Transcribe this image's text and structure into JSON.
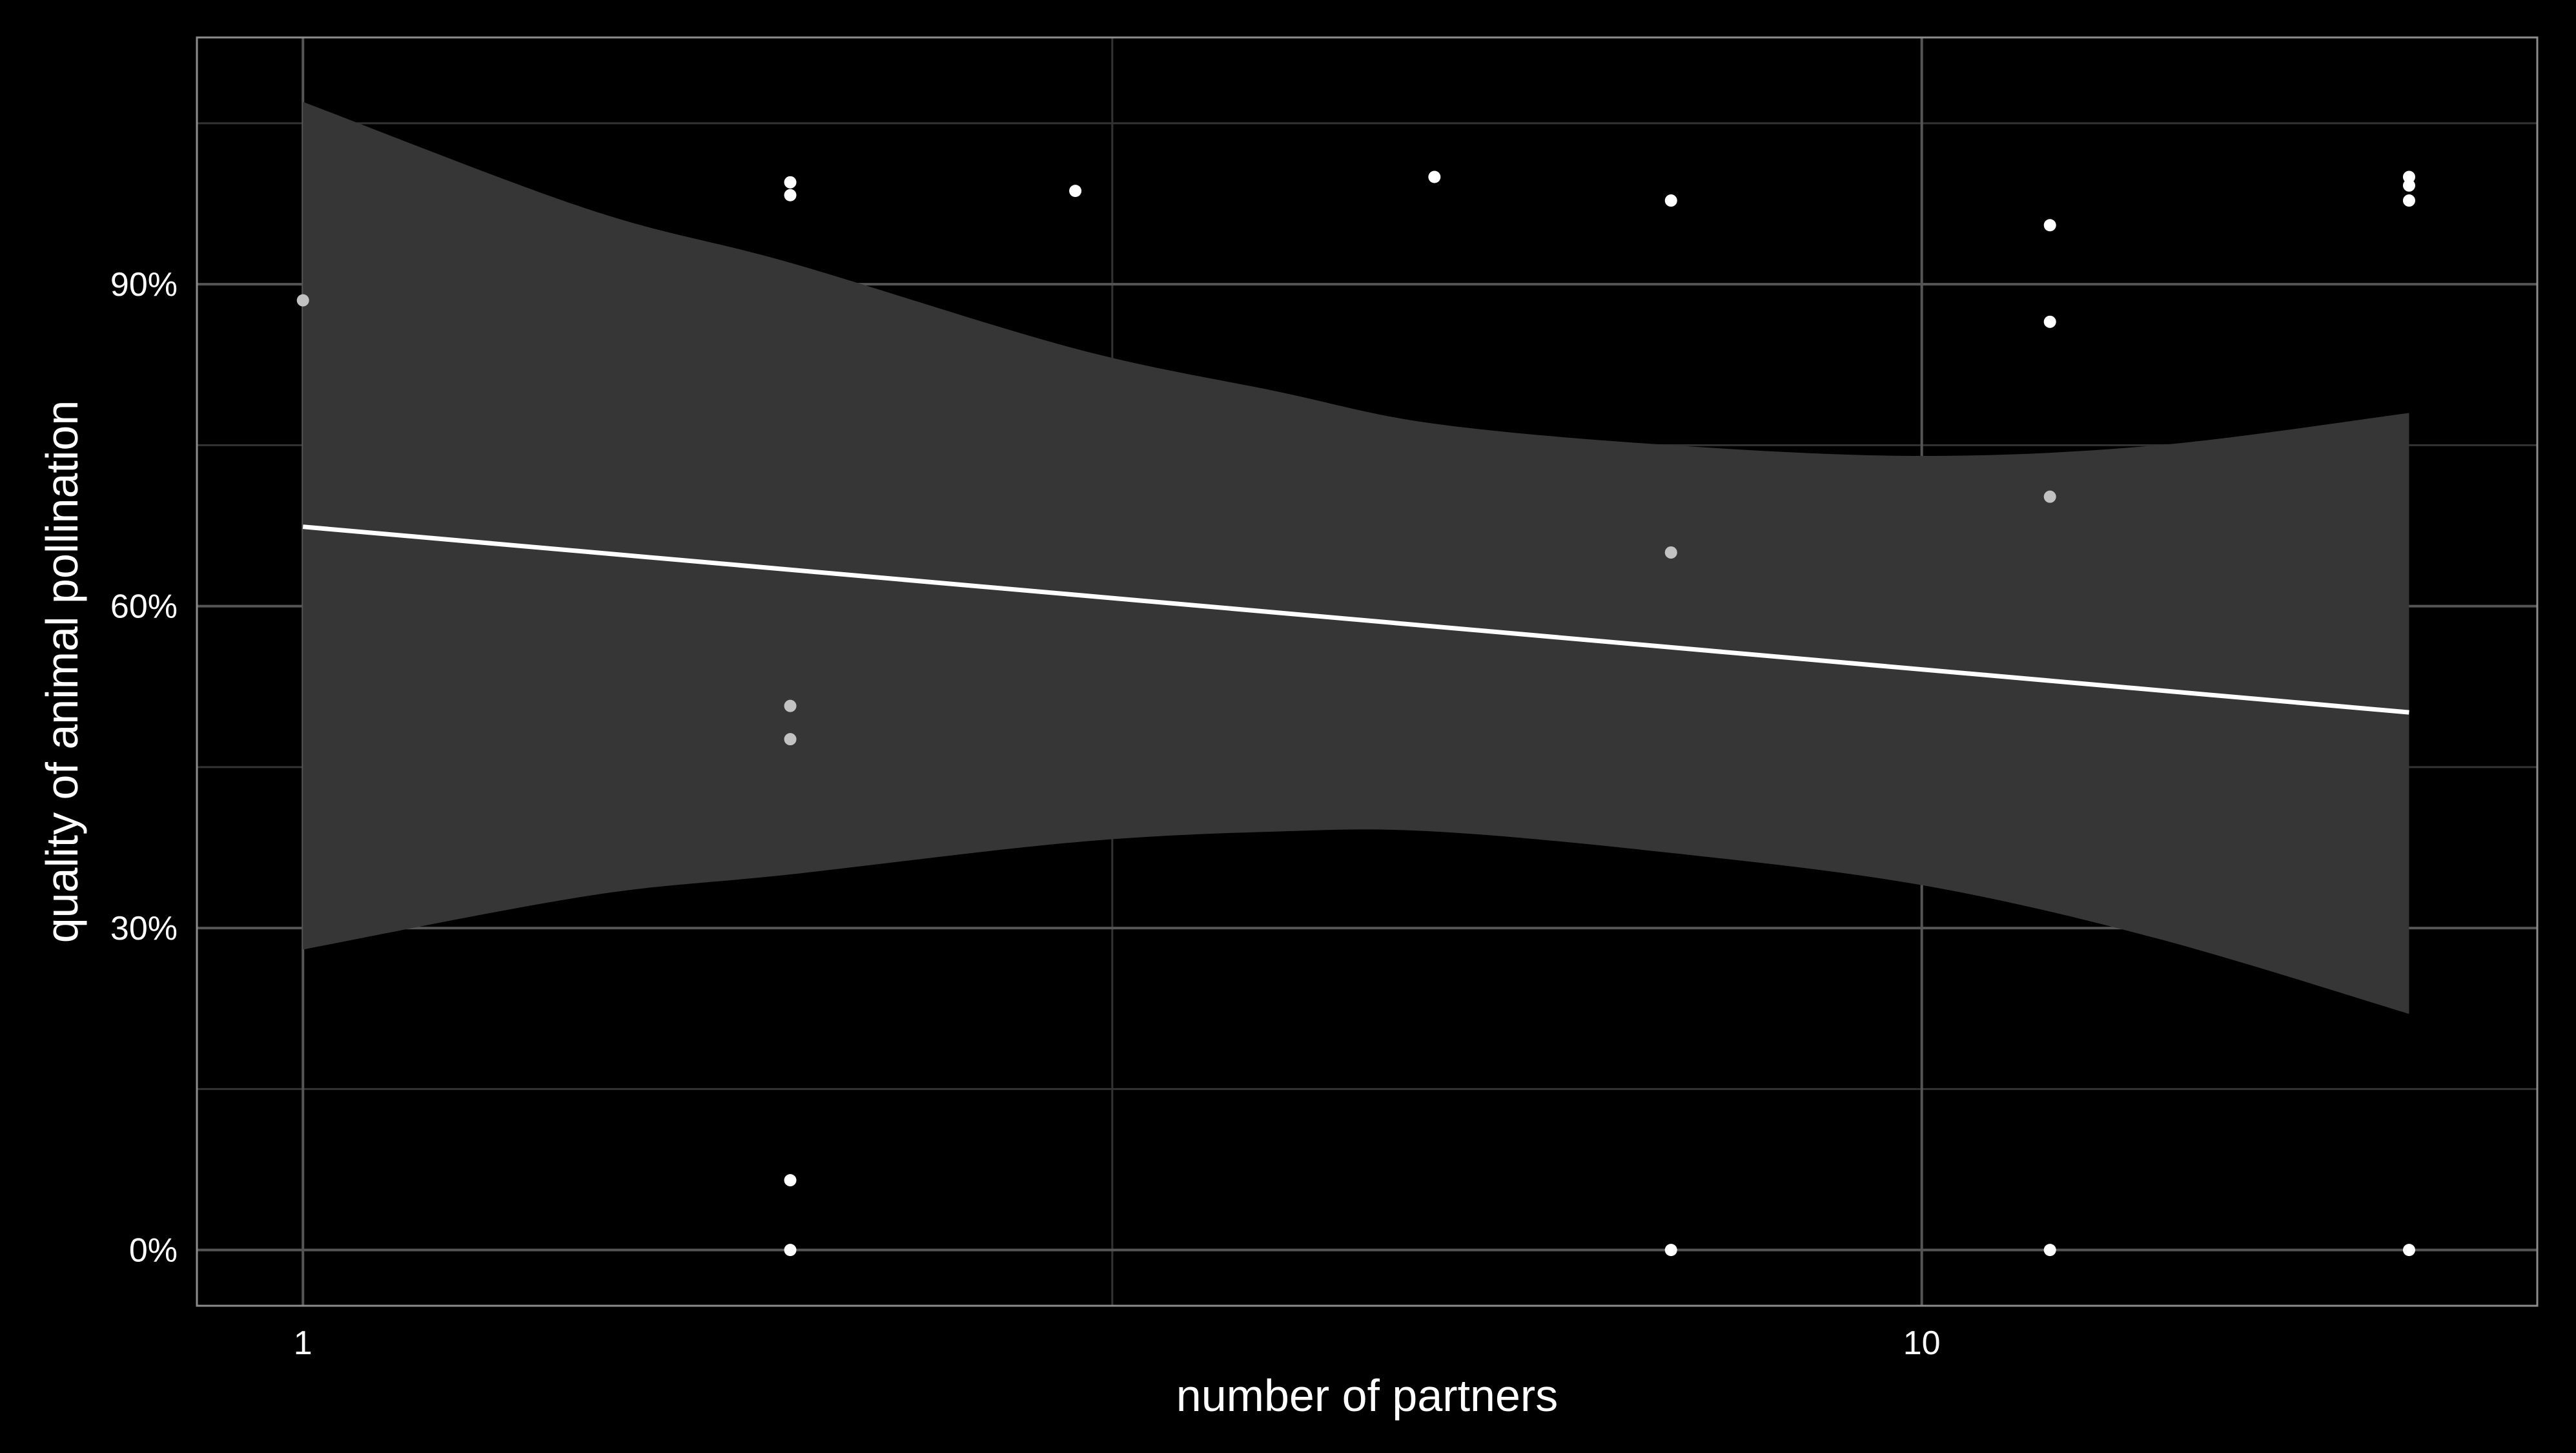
{
  "chart_data": {
    "type": "scatter",
    "title": "",
    "xlabel": "number of partners",
    "ylabel": "quality of animal pollination",
    "x_scale": "log10",
    "xlim": [
      0.86,
      24
    ],
    "ylim": [
      -0.052,
      1.13
    ],
    "x_ticks": [
      {
        "value": 1,
        "label": "1"
      },
      {
        "value": 10,
        "label": "10"
      }
    ],
    "x_minor_ticks": [
      3.162
    ],
    "y_ticks": [
      {
        "value": 0.0,
        "label": "0%"
      },
      {
        "value": 0.3,
        "label": "30%"
      },
      {
        "value": 0.6,
        "label": "60%"
      },
      {
        "value": 0.9,
        "label": "90%"
      }
    ],
    "y_minor_ticks": [
      0.15,
      0.45,
      0.75,
      1.05
    ],
    "grid": true,
    "legend": "none",
    "points": [
      {
        "x": 1,
        "y": 0.885
      },
      {
        "x": 2,
        "y": 0.995
      },
      {
        "x": 2,
        "y": 0.983
      },
      {
        "x": 2,
        "y": 0.507
      },
      {
        "x": 2,
        "y": 0.476
      },
      {
        "x": 2,
        "y": 0.065
      },
      {
        "x": 2,
        "y": 0.0
      },
      {
        "x": 3,
        "y": 0.987
      },
      {
        "x": 5,
        "y": 1.0
      },
      {
        "x": 7,
        "y": 0.978
      },
      {
        "x": 7,
        "y": 0.65
      },
      {
        "x": 7,
        "y": 0.0
      },
      {
        "x": 12,
        "y": 0.955
      },
      {
        "x": 12,
        "y": 0.865
      },
      {
        "x": 12,
        "y": 0.702
      },
      {
        "x": 12,
        "y": 0.0
      },
      {
        "x": 20,
        "y": 1.0
      },
      {
        "x": 20,
        "y": 0.992
      },
      {
        "x": 20,
        "y": 0.978
      },
      {
        "x": 20,
        "y": 0.0
      }
    ],
    "fit_line": [
      {
        "x": 1,
        "y": 0.674
      },
      {
        "x": 20,
        "y": 0.501
      }
    ],
    "confidence_band": [
      {
        "x": 1,
        "lower": 0.28,
        "upper": 1.07
      },
      {
        "x": 1.5,
        "lower": 0.33,
        "upper": 0.97
      },
      {
        "x": 2,
        "lower": 0.35,
        "upper": 0.92
      },
      {
        "x": 3,
        "lower": 0.38,
        "upper": 0.84
      },
      {
        "x": 4,
        "lower": 0.39,
        "upper": 0.8
      },
      {
        "x": 5,
        "lower": 0.39,
        "upper": 0.77
      },
      {
        "x": 7,
        "lower": 0.37,
        "upper": 0.75
      },
      {
        "x": 10,
        "lower": 0.34,
        "upper": 0.74
      },
      {
        "x": 14,
        "lower": 0.29,
        "upper": 0.75
      },
      {
        "x": 20,
        "lower": 0.22,
        "upper": 0.78
      }
    ],
    "colors": {
      "background": "#000000",
      "panel_border": "#8c8c8c",
      "grid_major": "#555555",
      "grid_minor": "#333333",
      "band": "#363636",
      "line": "#ffffff",
      "point": "#ffffff",
      "point_in_band": "#c2c2c2"
    }
  }
}
